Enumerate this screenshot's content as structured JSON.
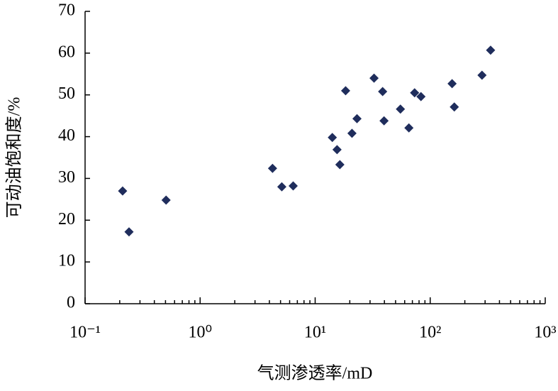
{
  "chart_data": {
    "type": "scatter",
    "x_label": "气测渗透率/mD",
    "y_label": "可动油饱和度/%",
    "x_scale": "log",
    "minor_ticks": true,
    "color": "#1f2d5c",
    "xlim": [
      0.1,
      1000
    ],
    "xticks": [
      {
        "value": 0.1,
        "label": "10⁻¹"
      },
      {
        "value": 1,
        "label": "10⁰"
      },
      {
        "value": 10,
        "label": "10¹"
      },
      {
        "value": 100,
        "label": "10²"
      },
      {
        "value": 1000,
        "label": "10³"
      }
    ],
    "ylim": [
      0,
      70
    ],
    "yticks": [
      0,
      10,
      20,
      30,
      40,
      50,
      60,
      70
    ],
    "x": [
      0.212,
      0.241,
      0.506,
      4.26,
      5.13,
      6.44,
      14.1,
      15.5,
      16.4,
      18.4,
      20.9,
      23.1,
      32.5,
      38.6,
      39.7,
      55.1,
      65.3,
      73.2,
      83.1,
      155,
      162,
      282,
      335
    ],
    "values": [
      27.0,
      17.2,
      24.8,
      32.4,
      28.0,
      28.2,
      39.8,
      36.9,
      33.3,
      51.0,
      40.8,
      44.3,
      54.0,
      50.8,
      43.8,
      46.6,
      42.1,
      50.5,
      49.6,
      52.7,
      47.1,
      54.7,
      60.7
    ]
  }
}
